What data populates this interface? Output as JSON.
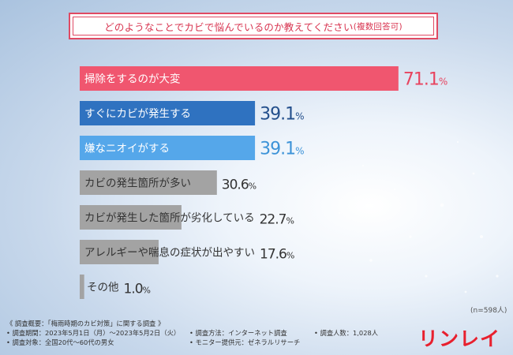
{
  "title": {
    "main": "どのようなことでカビで悩んでいるのか教えてください",
    "sub": "(複数回答可)"
  },
  "sample_note": "(n=598人)",
  "footer": {
    "survey_title": "《 調査概要：「梅雨時期のカビ対策」に関する調査 》",
    "period": "• 調査期間：2023年5月1日（月）～2023年5月2日（火）",
    "target": "• 調査対象：全国20代～60代の男女",
    "method": "• 調査方法：インターネット調査",
    "monitor": "• モニター提供元：ゼネラルリサーチ",
    "count": "• 調査人数：1,028人"
  },
  "logo_text": "リンレイ",
  "chart_data": {
    "type": "bar",
    "orientation": "horizontal",
    "unit": "%",
    "categories": [
      "掃除をするのが大変",
      "すぐにカビが発生する",
      "嫌なニオイがする",
      "カビの発生箇所が多い",
      "カビが発生した箇所が劣化している",
      "アレルギーや喘息の症状が出やすい",
      "その他"
    ],
    "values": [
      71.1,
      39.1,
      39.1,
      30.6,
      22.7,
      17.6,
      1.0
    ],
    "value_labels": [
      "71.1%",
      "39.1%",
      "39.1%",
      "30.6%",
      "22.7%",
      "17.6%",
      "1.0%"
    ],
    "bar_colors": [
      "#f0566f",
      "#2f72c0",
      "#55a7ea",
      "#a3a3a3",
      "#a3a3a3",
      "#a3a3a3",
      "#a3a3a3"
    ],
    "value_colors": [
      "#e8445f",
      "#234f8c",
      "#3d93d8",
      "#333333",
      "#333333",
      "#333333",
      "#333333"
    ],
    "label_colors": [
      "#ffffff",
      "#ffffff",
      "#ffffff",
      "#333333",
      "#333333",
      "#333333",
      "#333333"
    ],
    "xlim": [
      0,
      100
    ]
  }
}
